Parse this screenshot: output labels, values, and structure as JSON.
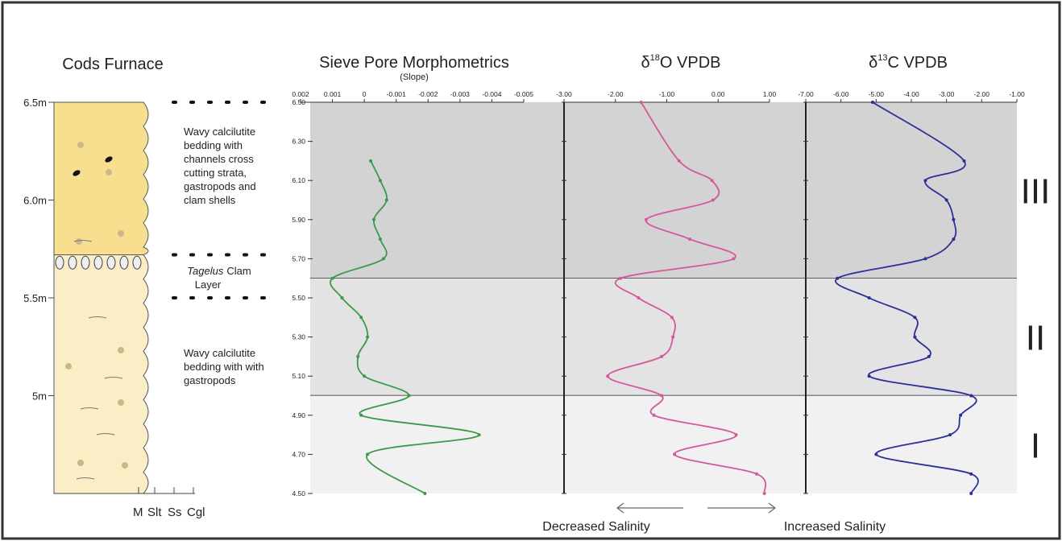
{
  "column": {
    "title": "Cods Furnace",
    "depth_labels": [
      {
        "value": 6.5,
        "label": "6.5m"
      },
      {
        "value": 6.0,
        "label": "6.0m"
      },
      {
        "value": 5.5,
        "label": "5.5m"
      },
      {
        "value": 5.0,
        "label": "5m"
      }
    ],
    "units": [
      {
        "top": 6.5,
        "bottom": 5.72,
        "color": "#f8de8f"
      },
      {
        "top": 5.72,
        "bottom": 4.5,
        "color": "#fbeec6"
      }
    ],
    "upper_description": [
      "Wavy calcilutite",
      "bedding with",
      "channels cross",
      "cutting strata,",
      "gastropods and",
      "clam shells"
    ],
    "clam_label": {
      "italic": "Tagelus",
      "text": "Clam",
      "line2": "Layer"
    },
    "lower_description": [
      "Wavy calcilutite",
      "bedding with with",
      "gastropods"
    ],
    "grain_sizes": [
      "M",
      "Slt",
      "Ss",
      "Cgl"
    ]
  },
  "salinity": {
    "decreased": "Decreased Salinity",
    "increased": "Increased Salinity"
  },
  "zones": [
    {
      "label": "III",
      "top": 6.5,
      "bottom": 5.6,
      "color": "#d3d3d3"
    },
    {
      "label": "II",
      "top": 5.6,
      "bottom": 5.0,
      "color": "#e3e3e3"
    },
    {
      "label": "I",
      "top": 5.0,
      "bottom": 4.5,
      "color": "#f1f1f1"
    }
  ],
  "chart_data": [
    {
      "type": "line",
      "title": "Sieve Pore Morphometrics",
      "subtitle": "(Slope)",
      "color": "#3a9a4c",
      "depth": [
        6.2,
        6.1,
        6.0,
        5.9,
        5.8,
        5.7,
        5.6,
        5.5,
        5.4,
        5.3,
        5.2,
        5.1,
        5.0,
        4.9,
        4.8,
        4.7,
        4.5
      ],
      "values": [
        -0.0002,
        -0.0005,
        -0.0007,
        -0.0003,
        -0.0005,
        -0.0006,
        0.001,
        0.0007,
        0.0001,
        -0.0001,
        0.0002,
        0,
        -0.0014,
        0.0001,
        -0.0036,
        -0.0001,
        -0.0019
      ],
      "xlim": [
        0.002,
        -0.005
      ],
      "xticks": [
        0.002,
        0.001,
        0,
        -0.001,
        -0.002,
        -0.003,
        -0.004,
        -0.005
      ],
      "ylim": [
        4.5,
        6.5
      ],
      "yticks": [
        {
          "value": 6.5,
          "label": "6.50"
        },
        {
          "value": 6.3,
          "label": "6.30"
        },
        {
          "value": 6.1,
          "label": "6.10"
        },
        {
          "value": 5.9,
          "label": "5.90"
        },
        {
          "value": 5.7,
          "label": "5.70"
        },
        {
          "value": 5.5,
          "label": "5.50"
        },
        {
          "value": 5.3,
          "label": "5.30"
        },
        {
          "value": 5.1,
          "label": "5.10"
        },
        {
          "value": 4.9,
          "label": "4.90"
        },
        {
          "value": 4.7,
          "label": "4.70"
        },
        {
          "value": 4.5,
          "label": "4.50"
        }
      ]
    },
    {
      "type": "line",
      "title_prefix": "δ",
      "title_superscript": "18",
      "title_suffix": "O VPDB",
      "color": "#d6589c",
      "depth": [
        6.5,
        6.2,
        6.1,
        6.0,
        5.9,
        5.8,
        5.7,
        5.6,
        5.5,
        5.4,
        5.3,
        5.2,
        5.1,
        5.0,
        4.9,
        4.8,
        4.7,
        4.6,
        4.5
      ],
      "values": [
        -1.5,
        -0.76,
        -0.12,
        -0.1,
        -1.4,
        -0.55,
        0.3,
        -1.9,
        -1.55,
        -0.9,
        -0.88,
        -1.1,
        -2.15,
        -1.1,
        -1.25,
        0.35,
        -0.85,
        0.75,
        0.9
      ],
      "xlim": [
        -3,
        1
      ],
      "xticks": [
        {
          "value": -3,
          "label": "-3.00"
        },
        {
          "value": -2,
          "label": "-2.00"
        },
        {
          "value": -1,
          "label": "-1.00"
        },
        {
          "value": 0,
          "label": "0.00"
        },
        {
          "value": 1,
          "label": "1.00"
        }
      ],
      "ylim": [
        4.5,
        6.5
      ],
      "yticks": [
        6.5,
        6.3,
        6.1,
        5.9,
        5.7,
        5.5,
        5.3,
        5.1,
        4.9,
        4.7,
        4.5
      ]
    },
    {
      "type": "line",
      "title_prefix": "δ",
      "title_superscript": "13",
      "title_suffix": "C VPDB",
      "color": "#2c2f98",
      "depth": [
        6.5,
        6.2,
        6.1,
        6.0,
        5.9,
        5.8,
        5.7,
        5.6,
        5.5,
        5.4,
        5.3,
        5.2,
        5.1,
        5.0,
        4.9,
        4.8,
        4.7,
        4.6,
        4.5
      ],
      "values": [
        -5.1,
        -2.5,
        -3.6,
        -3.0,
        -2.8,
        -2.8,
        -3.6,
        -6.1,
        -5.2,
        -3.9,
        -3.9,
        -3.5,
        -5.2,
        -2.3,
        -2.6,
        -2.9,
        -5.0,
        -2.3,
        -2.3
      ],
      "xlim": [
        -7,
        -1
      ],
      "xticks": [
        {
          "value": -7,
          "label": "-7.00"
        },
        {
          "value": -6,
          "label": "-6.00"
        },
        {
          "value": -5,
          "label": "-5.00"
        },
        {
          "value": -4,
          "label": "-4.00"
        },
        {
          "value": -3,
          "label": "-3.00"
        },
        {
          "value": -2,
          "label": "-2.00"
        },
        {
          "value": -1,
          "label": "-1.00"
        }
      ],
      "ylim": [
        4.5,
        6.5
      ],
      "yticks": [
        6.5,
        6.3,
        6.1,
        5.9,
        5.7,
        5.5,
        5.3,
        5.1,
        4.9,
        4.7,
        4.5
      ]
    }
  ]
}
